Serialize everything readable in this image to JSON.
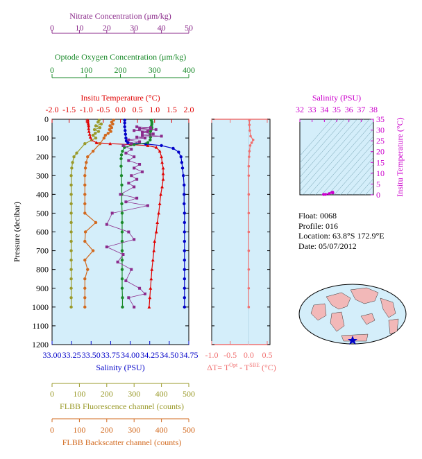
{
  "colors": {
    "nitrate": "#8b2a8b",
    "oxygen": "#1a8a2a",
    "temperature": "#e00000",
    "salinity": "#0000c8",
    "fluorescence": "#9a9a2a",
    "backscatter": "#d2691e",
    "delta": "#f07070",
    "ts_axis": "#cc00cc",
    "plot_bg": "#d4eefa"
  },
  "axes": {
    "nitrate": {
      "label": "Nitrate Concentration (μm/kg)",
      "ticks": [
        "0",
        "10",
        "20",
        "30",
        "40",
        "50"
      ]
    },
    "oxygen": {
      "label": "Optode Oxygen Concentration (μm/kg)",
      "ticks": [
        "0",
        "100",
        "200",
        "300",
        "400"
      ]
    },
    "temperature": {
      "label": "Insitu Temperature (°C)",
      "ticks": [
        "-2.0",
        "-1.5",
        "-1.0",
        "-0.5",
        "0.0",
        "0.5",
        "1.0",
        "1.5",
        "2.0"
      ]
    },
    "salinity": {
      "label": "Salinity (PSU)",
      "ticks": [
        "33.00",
        "33.25",
        "33.50",
        "33.75",
        "34.00",
        "34.25",
        "34.50",
        "34.75"
      ]
    },
    "pressure": {
      "label": "Pressure (decibar)",
      "ticks": [
        "0",
        "100",
        "200",
        "300",
        "400",
        "500",
        "600",
        "700",
        "800",
        "900",
        "1000",
        "1100",
        "1200"
      ]
    },
    "delta_t": {
      "label_prefix": "ΔT= T",
      "sup1": "Opt",
      "label_mid": " - T",
      "sup2": "SBE",
      "label_suffix": " (°C)",
      "ticks": [
        "-1.0",
        "-0.5",
        "0.0",
        "0.5"
      ]
    },
    "fluorescence": {
      "label": "FLBB Fluorescence channel (counts)",
      "ticks": [
        "0",
        "100",
        "200",
        "300",
        "400",
        "500"
      ]
    },
    "backscatter": {
      "label": "FLBB Backscatter channel (counts)",
      "ticks": [
        "0",
        "100",
        "200",
        "300",
        "400",
        "500"
      ]
    },
    "ts_salinity": {
      "label": "Salinity (PSU)",
      "ticks": [
        "32",
        "33",
        "34",
        "35",
        "36",
        "37",
        "38"
      ]
    },
    "ts_temperature": {
      "label": "Insitu Temperature (°C)",
      "ticks": [
        "0",
        "5",
        "10",
        "15",
        "20",
        "25",
        "30",
        "35"
      ]
    }
  },
  "info": {
    "float": "Float:  0068",
    "profile": "Profile:  016",
    "location": "Location:  63.8°S  172.9°E",
    "date": "Date:  05/07/2012"
  },
  "chart_data": {
    "type": "line",
    "title": "",
    "ylabel": "Pressure (decibar)",
    "ylim": [
      1200,
      0
    ],
    "series": [
      {
        "name": "Insitu Temperature (°C)",
        "xlim": [
          -2.0,
          2.0
        ],
        "points": [
          [
            -0.95,
            5
          ],
          [
            -0.95,
            15
          ],
          [
            -0.94,
            25
          ],
          [
            -0.93,
            35
          ],
          [
            -0.93,
            50
          ],
          [
            -0.92,
            65
          ],
          [
            -0.9,
            80
          ],
          [
            -0.88,
            95
          ],
          [
            -0.85,
            110
          ],
          [
            -0.7,
            125
          ],
          [
            -0.3,
            130
          ],
          [
            0.3,
            135
          ],
          [
            0.8,
            140
          ],
          [
            1.05,
            150
          ],
          [
            1.15,
            170
          ],
          [
            1.2,
            200
          ],
          [
            1.22,
            230
          ],
          [
            1.25,
            260
          ],
          [
            1.25,
            290
          ],
          [
            1.25,
            320
          ],
          [
            1.22,
            360
          ],
          [
            1.18,
            400
          ],
          [
            1.15,
            450
          ],
          [
            1.12,
            500
          ],
          [
            1.08,
            550
          ],
          [
            1.05,
            600
          ],
          [
            1.0,
            650
          ],
          [
            0.98,
            700
          ],
          [
            0.95,
            750
          ],
          [
            0.92,
            800
          ],
          [
            0.9,
            850
          ],
          [
            0.88,
            900
          ],
          [
            0.86,
            950
          ],
          [
            0.84,
            1000
          ]
        ]
      },
      {
        "name": "Salinity (PSU)",
        "xlim": [
          33.0,
          34.75
        ],
        "points": [
          [
            33.93,
            5
          ],
          [
            33.93,
            20
          ],
          [
            33.93,
            40
          ],
          [
            33.935,
            60
          ],
          [
            33.94,
            80
          ],
          [
            33.945,
            100
          ],
          [
            33.95,
            115
          ],
          [
            33.97,
            125
          ],
          [
            34.2,
            132
          ],
          [
            34.4,
            140
          ],
          [
            34.55,
            155
          ],
          [
            34.62,
            175
          ],
          [
            34.65,
            200
          ],
          [
            34.66,
            230
          ],
          [
            34.67,
            260
          ],
          [
            34.68,
            300
          ],
          [
            34.69,
            350
          ],
          [
            34.69,
            400
          ],
          [
            34.69,
            450
          ],
          [
            34.695,
            500
          ],
          [
            34.695,
            550
          ],
          [
            34.695,
            600
          ],
          [
            34.695,
            650
          ],
          [
            34.695,
            700
          ],
          [
            34.695,
            750
          ],
          [
            34.695,
            800
          ],
          [
            34.695,
            850
          ],
          [
            34.695,
            900
          ],
          [
            34.695,
            950
          ],
          [
            34.695,
            1000
          ]
        ]
      },
      {
        "name": "Optode Oxygen Concentration (μm/kg)",
        "xlim": [
          0,
          400
        ],
        "points": [
          [
            290,
            5
          ],
          [
            292,
            15
          ],
          [
            292,
            25
          ],
          [
            291,
            35
          ],
          [
            292,
            45
          ],
          [
            290,
            55
          ],
          [
            288,
            65
          ],
          [
            287,
            80
          ],
          [
            288,
            95
          ],
          [
            287,
            110
          ],
          [
            280,
            125
          ],
          [
            240,
            135
          ],
          [
            212,
            150
          ],
          [
            206,
            170
          ],
          [
            203,
            190
          ],
          [
            202,
            210
          ],
          [
            202,
            250
          ],
          [
            203,
            300
          ],
          [
            204,
            350
          ],
          [
            204,
            400
          ],
          [
            204,
            450
          ],
          [
            205,
            500
          ],
          [
            205,
            550
          ],
          [
            205,
            600
          ],
          [
            205,
            650
          ],
          [
            205,
            700
          ],
          [
            205,
            750
          ],
          [
            205,
            800
          ],
          [
            205,
            850
          ],
          [
            205,
            900
          ],
          [
            206,
            950
          ],
          [
            206,
            1000
          ]
        ]
      },
      {
        "name": "Nitrate Concentration (μm/kg)",
        "xlim": [
          0,
          50
        ],
        "points": [
          [
            31,
            40
          ],
          [
            36,
            45
          ],
          [
            32,
            50
          ],
          [
            38,
            55
          ],
          [
            30,
            60
          ],
          [
            35,
            65
          ],
          [
            33,
            70
          ],
          [
            37,
            78
          ],
          [
            33,
            85
          ],
          [
            40,
            90
          ],
          [
            31,
            95
          ],
          [
            34,
            100
          ],
          [
            28,
            110
          ],
          [
            32,
            120
          ],
          [
            29,
            130
          ],
          [
            26,
            140
          ],
          [
            29,
            160
          ],
          [
            27,
            180
          ],
          [
            30,
            200
          ],
          [
            28,
            220
          ],
          [
            32,
            240
          ],
          [
            30,
            260
          ],
          [
            33,
            280
          ],
          [
            29,
            300
          ],
          [
            31,
            320
          ],
          [
            28,
            340
          ],
          [
            30,
            360
          ],
          [
            25,
            400
          ],
          [
            31,
            420
          ],
          [
            27,
            440
          ],
          [
            35,
            460
          ],
          [
            22,
            500
          ],
          [
            20,
            560
          ],
          [
            28,
            600
          ],
          [
            30,
            640
          ],
          [
            20,
            680
          ],
          [
            26,
            720
          ],
          [
            24,
            760
          ],
          [
            29,
            800
          ],
          [
            27,
            860
          ],
          [
            32,
            900
          ],
          [
            34,
            930
          ],
          [
            28,
            950
          ],
          [
            30,
            1000
          ]
        ]
      },
      {
        "name": "FLBB Fluorescence channel (counts)",
        "xlim": [
          0,
          500
        ],
        "points": [
          [
            172,
            5
          ],
          [
            168,
            15
          ],
          [
            180,
            25
          ],
          [
            160,
            35
          ],
          [
            175,
            45
          ],
          [
            155,
            55
          ],
          [
            170,
            65
          ],
          [
            158,
            75
          ],
          [
            150,
            85
          ],
          [
            160,
            100
          ],
          [
            120,
            130
          ],
          [
            90,
            180
          ],
          [
            80,
            200
          ],
          [
            75,
            230
          ],
          [
            72,
            260
          ],
          [
            70,
            300
          ],
          [
            70,
            350
          ],
          [
            70,
            400
          ],
          [
            70,
            450
          ],
          [
            70,
            500
          ],
          [
            70,
            550
          ],
          [
            70,
            600
          ],
          [
            70,
            650
          ],
          [
            70,
            700
          ],
          [
            70,
            750
          ],
          [
            70,
            800
          ],
          [
            70,
            850
          ],
          [
            70,
            900
          ],
          [
            70,
            950
          ],
          [
            70,
            1000
          ]
        ]
      },
      {
        "name": "FLBB Backscatter channel (counts)",
        "xlim": [
          0,
          500
        ],
        "points": [
          [
            225,
            5
          ],
          [
            218,
            15
          ],
          [
            222,
            25
          ],
          [
            212,
            35
          ],
          [
            218,
            45
          ],
          [
            210,
            55
          ],
          [
            215,
            65
          ],
          [
            205,
            75
          ],
          [
            195,
            85
          ],
          [
            190,
            100
          ],
          [
            175,
            130
          ],
          [
            150,
            170
          ],
          [
            130,
            200
          ],
          [
            125,
            230
          ],
          [
            122,
            260
          ],
          [
            120,
            300
          ],
          [
            120,
            350
          ],
          [
            120,
            400
          ],
          [
            120,
            450
          ],
          [
            120,
            500
          ],
          [
            160,
            550
          ],
          [
            122,
            600
          ],
          [
            120,
            650
          ],
          [
            150,
            700
          ],
          [
            120,
            750
          ],
          [
            130,
            800
          ],
          [
            120,
            850
          ],
          [
            120,
            900
          ],
          [
            120,
            950
          ],
          [
            120,
            1000
          ]
        ]
      },
      {
        "name": "ΔT= TOpt - TSBE (°C)",
        "xlim": [
          -1.0,
          0.5
        ],
        "points": [
          [
            0.02,
            5
          ],
          [
            0.02,
            30
          ],
          [
            0.03,
            60
          ],
          [
            0.05,
            90
          ],
          [
            0.12,
            110
          ],
          [
            0.08,
            125
          ],
          [
            0.04,
            140
          ],
          [
            0.02,
            170
          ],
          [
            0.01,
            200
          ],
          [
            0.0,
            250
          ],
          [
            0.0,
            300
          ],
          [
            0.0,
            400
          ],
          [
            0.0,
            500
          ],
          [
            0.0,
            600
          ],
          [
            0.0,
            700
          ],
          [
            0.0,
            800
          ],
          [
            0.0,
            900
          ],
          [
            0.0,
            1000
          ]
        ]
      }
    ],
    "ts_diagram": {
      "xlim": [
        32,
        38
      ],
      "ylim": [
        0,
        35
      ],
      "points": [
        [
          33.93,
          -0.95
        ],
        [
          33.95,
          -0.9
        ],
        [
          34.1,
          -0.3
        ],
        [
          34.4,
          0.6
        ],
        [
          34.6,
          1.1
        ],
        [
          34.68,
          1.25
        ],
        [
          34.695,
          0.9
        ]
      ]
    }
  }
}
